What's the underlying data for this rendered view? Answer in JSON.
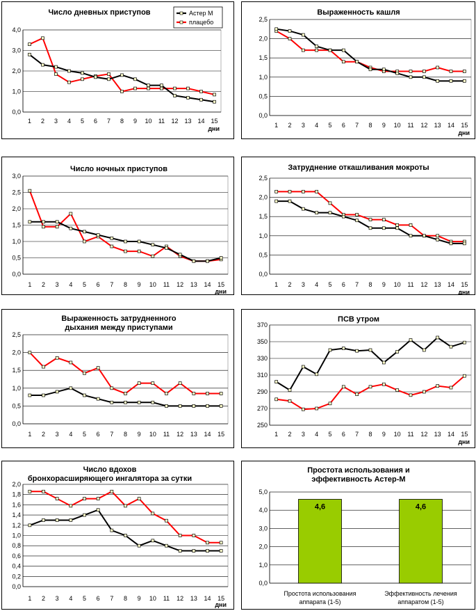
{
  "chart_data": [
    {
      "type": "line",
      "title": "Число дневных приступов",
      "x": [
        1,
        2,
        3,
        4,
        5,
        6,
        7,
        8,
        9,
        10,
        11,
        12,
        13,
        14,
        15
      ],
      "xlabel": "дни",
      "ylim": [
        0,
        4
      ],
      "yticks": [
        "0,0",
        "1,0",
        "2,0",
        "3,0",
        "4,0"
      ],
      "legend": "top-right",
      "series": [
        {
          "name": "Астер М",
          "color": "#000000",
          "values": [
            2.8,
            2.3,
            2.2,
            2.0,
            1.9,
            1.7,
            1.6,
            1.8,
            1.6,
            1.3,
            1.3,
            0.8,
            0.7,
            0.6,
            0.5
          ]
        },
        {
          "name": "плацебо",
          "color": "#ff0000",
          "values": [
            3.3,
            3.6,
            1.85,
            1.45,
            1.6,
            1.75,
            1.85,
            1.0,
            1.15,
            1.15,
            1.15,
            1.15,
            1.15,
            1.0,
            0.85
          ]
        }
      ]
    },
    {
      "type": "line",
      "title": "Выраженность кашля",
      "x": [
        1,
        2,
        3,
        4,
        5,
        6,
        7,
        8,
        9,
        10,
        11,
        12,
        13,
        14,
        15
      ],
      "xlabel": "дни",
      "ylim": [
        0,
        2.5
      ],
      "yticks": [
        "0,0",
        "0,5",
        "1,0",
        "1,5",
        "2,0",
        "2,5"
      ],
      "series": [
        {
          "color": "#000000",
          "values": [
            2.25,
            2.2,
            2.1,
            1.8,
            1.7,
            1.7,
            1.4,
            1.2,
            1.2,
            1.1,
            1.0,
            1.0,
            0.9,
            0.9,
            0.9
          ]
        },
        {
          "color": "#ff0000",
          "values": [
            2.2,
            2.0,
            1.7,
            1.7,
            1.7,
            1.4,
            1.4,
            1.25,
            1.15,
            1.15,
            1.15,
            1.15,
            1.25,
            1.15,
            1.15
          ]
        }
      ]
    },
    {
      "type": "line",
      "title": "Число ночных приступов",
      "x": [
        1,
        2,
        3,
        4,
        5,
        6,
        7,
        8,
        9,
        10,
        11,
        12,
        13,
        14,
        15
      ],
      "xlabel": "дни",
      "ylim": [
        0,
        3
      ],
      "yticks": [
        "0,0",
        "0,5",
        "1,0",
        "1,5",
        "2,0",
        "2,5",
        "3,0"
      ],
      "series": [
        {
          "color": "#000000",
          "values": [
            1.6,
            1.6,
            1.6,
            1.4,
            1.3,
            1.2,
            1.1,
            1.0,
            1.0,
            0.9,
            0.8,
            0.6,
            0.4,
            0.4,
            0.5
          ]
        },
        {
          "color": "#ff0000",
          "values": [
            2.55,
            1.45,
            1.45,
            1.85,
            1.0,
            1.15,
            0.85,
            0.7,
            0.7,
            0.55,
            0.85,
            0.55,
            0.4,
            0.4,
            0.45
          ]
        }
      ]
    },
    {
      "type": "line",
      "title": "Затруднение откашливания мокроты",
      "x": [
        1,
        2,
        3,
        4,
        5,
        6,
        7,
        8,
        9,
        10,
        11,
        12,
        13,
        14,
        15
      ],
      "xlabel": "дни",
      "ylim": [
        0,
        2.5
      ],
      "yticks": [
        "0,0",
        "0,5",
        "1,0",
        "1,5",
        "2,0",
        "2,5"
      ],
      "series": [
        {
          "color": "#000000",
          "values": [
            1.9,
            1.9,
            1.7,
            1.6,
            1.6,
            1.5,
            1.4,
            1.2,
            1.2,
            1.2,
            1.0,
            1.0,
            0.9,
            0.8,
            0.8
          ]
        },
        {
          "color": "#ff0000",
          "values": [
            2.15,
            2.15,
            2.15,
            2.15,
            1.85,
            1.55,
            1.55,
            1.42,
            1.42,
            1.28,
            1.28,
            1.0,
            1.0,
            0.85,
            0.85
          ]
        }
      ]
    },
    {
      "type": "line",
      "title": "Выраженность затрудненного дыхания между приступами",
      "x": [
        1,
        2,
        3,
        4,
        5,
        6,
        7,
        8,
        9,
        10,
        11,
        12,
        13,
        14,
        15
      ],
      "ylim": [
        0,
        2.5
      ],
      "yticks": [
        "0,0",
        "0,5",
        "1,0",
        "1,5",
        "2,0",
        "2,5"
      ],
      "series": [
        {
          "color": "#000000",
          "values": [
            0.8,
            0.8,
            0.9,
            1.0,
            0.8,
            0.7,
            0.6,
            0.6,
            0.6,
            0.6,
            0.5,
            0.5,
            0.5,
            0.5,
            0.5
          ]
        },
        {
          "color": "#ff0000",
          "values": [
            2.0,
            1.6,
            1.85,
            1.72,
            1.42,
            1.57,
            1.0,
            0.85,
            1.14,
            1.14,
            0.85,
            1.14,
            0.85,
            0.85,
            0.85
          ]
        }
      ]
    },
    {
      "type": "line",
      "title": "ПСВ утром",
      "x": [
        1,
        2,
        3,
        4,
        5,
        6,
        7,
        8,
        9,
        10,
        11,
        12,
        13,
        14,
        15
      ],
      "xlabel": "дни",
      "ylim": [
        250,
        370
      ],
      "yticks": [
        "250",
        "270",
        "290",
        "310",
        "330",
        "350",
        "370"
      ],
      "series": [
        {
          "color": "#000000",
          "values": [
            302,
            292,
            320,
            311,
            340,
            342,
            339,
            340,
            325,
            338,
            352,
            340,
            355,
            344,
            349
          ]
        },
        {
          "color": "#ff0000",
          "values": [
            281,
            279,
            269,
            270,
            276,
            296,
            287,
            296,
            299,
            292,
            286,
            290,
            297,
            295,
            309
          ]
        }
      ]
    },
    {
      "type": "line",
      "title": "Число вдохов бронхорасширяющего ингалятора за сутки",
      "x": [
        1,
        2,
        3,
        4,
        5,
        6,
        7,
        8,
        9,
        10,
        11,
        12,
        13,
        14,
        15
      ],
      "xlabel": "дни",
      "ylim": [
        0,
        2
      ],
      "yticks": [
        "0,0",
        "0,2",
        "0,4",
        "0,6",
        "0,8",
        "1,0",
        "1,2",
        "1,4",
        "1,6",
        "1,8",
        "2,0"
      ],
      "series": [
        {
          "color": "#000000",
          "values": [
            1.2,
            1.3,
            1.3,
            1.3,
            1.4,
            1.5,
            1.1,
            1.0,
            0.8,
            0.9,
            0.8,
            0.7,
            0.7,
            0.7,
            0.7
          ]
        },
        {
          "color": "#ff0000",
          "values": [
            1.86,
            1.86,
            1.72,
            1.58,
            1.72,
            1.72,
            1.86,
            1.58,
            1.72,
            1.43,
            1.29,
            1.0,
            1.0,
            0.86,
            0.86
          ]
        }
      ]
    },
    {
      "type": "bar",
      "title": "Простота использования и эффективность Астер-М",
      "categories": [
        "Простота использования аппарата (1-5)",
        "Эффективность лечения аппаратом (1-5)"
      ],
      "values": [
        4.6,
        4.6
      ],
      "data_labels": [
        "4,6",
        "4,6"
      ],
      "ylim": [
        0,
        5
      ],
      "yticks": [
        "0,0",
        "1,0",
        "2,0",
        "3,0",
        "4,0",
        "5,0"
      ],
      "bar_color": "#99cc00"
    }
  ]
}
